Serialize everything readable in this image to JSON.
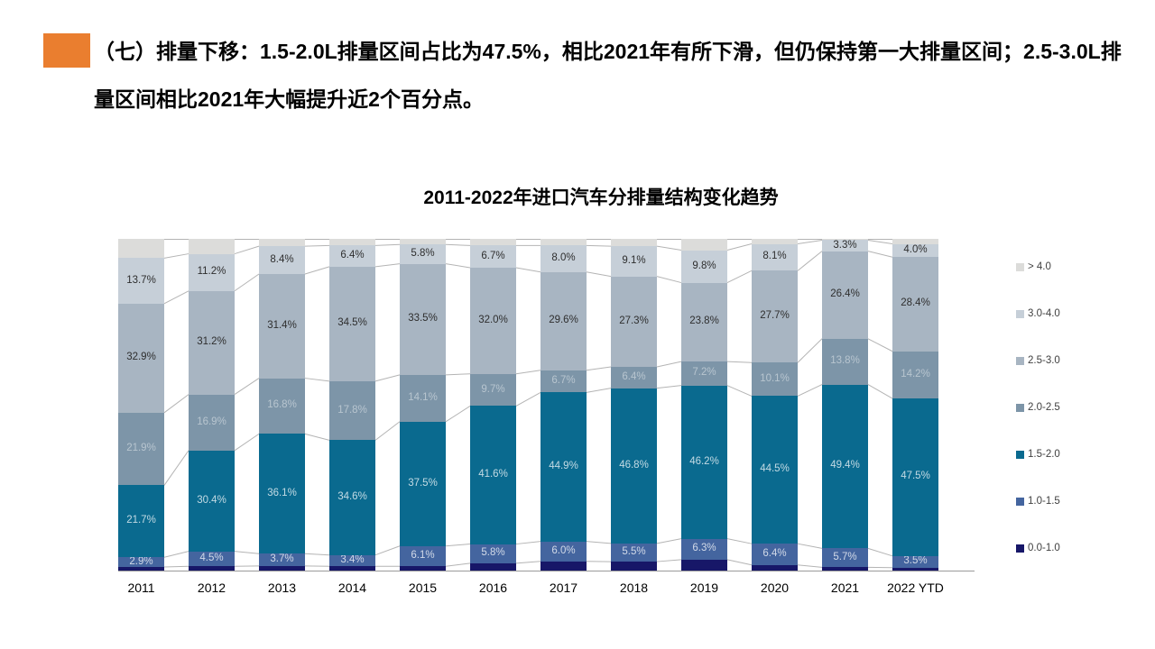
{
  "header": {
    "bullet_color": "#ea7e2f",
    "text": "（七）排量下移：1.5-2.0L排量区间占比为47.5%，相比2021年有所下滑，但仍保持第一大排量区间；2.5-3.0L排量区间相比2021年大幅提升近2个百分点。"
  },
  "chart_data": {
    "type": "bar",
    "subtype": "100%-stacked-column",
    "title": "2011-2022年进口汽车分排量结构变化趋势",
    "categories": [
      "2011",
      "2012",
      "2013",
      "2014",
      "2015",
      "2016",
      "2017",
      "2018",
      "2019",
      "2020",
      "2021",
      "2022 YTD"
    ],
    "series": [
      {
        "name": "0.0-1.0",
        "color": "#171768",
        "label_style": "none",
        "estimated": true,
        "values": [
          1.1,
          1.3,
          1.4,
          1.3,
          1.3,
          2.2,
          2.8,
          2.7,
          3.3,
          1.7,
          1.0,
          0.9
        ]
      },
      {
        "name": "1.0-1.5",
        "color": "#44659f",
        "label_style": "light",
        "values": [
          2.9,
          4.5,
          3.7,
          3.4,
          6.1,
          5.8,
          6.0,
          5.5,
          6.3,
          6.4,
          5.7,
          3.5
        ]
      },
      {
        "name": "1.5-2.0",
        "color": "#0a6a8f",
        "label_style": "light",
        "values": [
          21.7,
          30.4,
          36.1,
          34.6,
          37.5,
          41.6,
          44.9,
          46.8,
          46.2,
          44.5,
          49.4,
          47.5
        ]
      },
      {
        "name": "2.0-2.5",
        "color": "#7d95a8",
        "label_style": "faint",
        "values": [
          21.9,
          16.9,
          16.8,
          17.8,
          14.1,
          9.7,
          6.7,
          6.4,
          7.2,
          10.1,
          13.8,
          14.2
        ]
      },
      {
        "name": "2.5-3.0",
        "color": "#a8b5c2",
        "label_style": "dark",
        "values": [
          32.9,
          31.2,
          31.4,
          34.5,
          33.5,
          32.0,
          29.6,
          27.3,
          23.8,
          27.7,
          26.4,
          28.4
        ]
      },
      {
        "name": "3.0-4.0",
        "color": "#c6cfd8",
        "label_style": "dark",
        "values": [
          13.7,
          11.2,
          8.4,
          6.4,
          5.8,
          6.7,
          8.0,
          9.1,
          9.8,
          8.1,
          3.3,
          4.0
        ]
      },
      {
        "name": "> 4.0",
        "color": "#dcdcda",
        "label_style": "none",
        "estimated": true,
        "values": [
          5.8,
          4.5,
          2.2,
          2.0,
          1.7,
          2.0,
          2.0,
          2.2,
          3.4,
          1.5,
          0.4,
          1.5
        ]
      }
    ],
    "label_colors": {
      "dark": "#2e2e2e",
      "light": "rgba(255,255,255,0.75)",
      "faint": "rgba(255,255,255,0.45)"
    },
    "connector_line_color": "#b4b4b4",
    "axis_line_color": "#9a9a9a",
    "legend_position": "right",
    "legend_order": "top-to-bottom is reverse of stack (> 4.0 first, 0.0-1.0 last)",
    "ylim": [
      0,
      100
    ],
    "grid": false,
    "value_format": "x.x%"
  }
}
